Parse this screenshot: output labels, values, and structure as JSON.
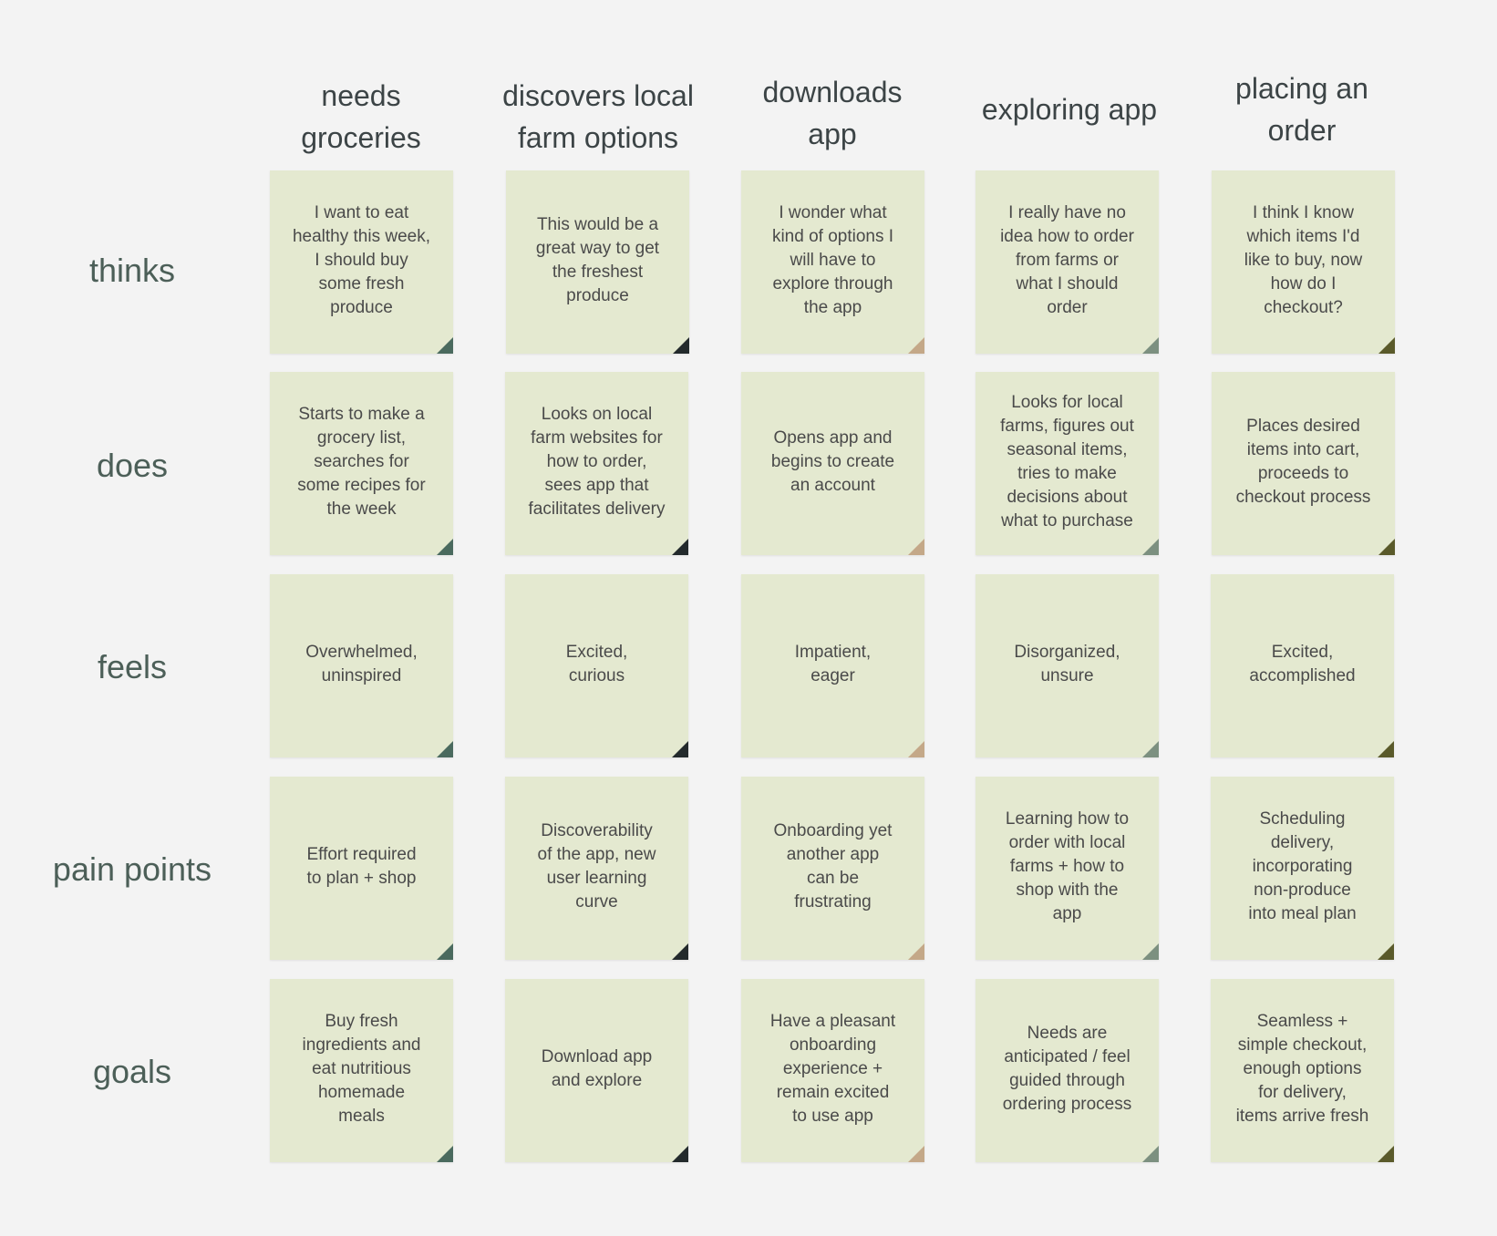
{
  "columns": [
    {
      "title": "needs\ngroceries",
      "fold_color": "#4a6a5e"
    },
    {
      "title": "discovers local\nfarm options",
      "fold_color": "#232a2c"
    },
    {
      "title": "downloads\napp",
      "fold_color": "#c4a888"
    },
    {
      "title": "exploring app",
      "fold_color": "#7c9080"
    },
    {
      "title": "placing an\norder",
      "fold_color": "#5a5a2a"
    }
  ],
  "rows": [
    {
      "label": "thinks",
      "notes": [
        "I want to eat\nhealthy this week,\nI should buy\nsome fresh\nproduce",
        "This would be a\ngreat way to get\nthe freshest\nproduce",
        "I wonder what\nkind of options I\nwill have to\nexplore through\nthe app",
        "I really have no\nidea how to order\nfrom farms or\nwhat I should\norder",
        "I think I know\nwhich items I'd\nlike to buy, now\nhow do I\ncheckout?"
      ]
    },
    {
      "label": "does",
      "notes": [
        "Starts to make a\ngrocery list,\nsearches for\nsome recipes for\nthe week",
        "Looks on local\nfarm websites for\nhow to order,\nsees app that\nfacilitates delivery",
        "Opens app and\nbegins to create\nan account",
        "Looks for local\nfarms, figures out\nseasonal items,\ntries to make\ndecisions about\nwhat to purchase",
        "Places desired\nitems into cart,\nproceeds to\ncheckout process"
      ]
    },
    {
      "label": "feels",
      "notes": [
        "Overwhelmed,\nuninspired",
        "Excited,\ncurious",
        "Impatient,\neager",
        "Disorganized,\nunsure",
        "Excited,\naccomplished"
      ]
    },
    {
      "label": "pain points",
      "notes": [
        "Effort required\nto plan + shop",
        "Discoverability\nof the app, new\nuser learning\ncurve",
        "Onboarding yet\nanother app\ncan be\nfrustrating",
        "Learning how to\norder with local\nfarms + how to\nshop with the\napp",
        "Scheduling\ndelivery,\nincorporating\nnon-produce\ninto meal plan"
      ]
    },
    {
      "label": "goals",
      "notes": [
        "Buy fresh\ningredients and\neat nutritious\nhomemade\nmeals",
        "Download app\nand explore",
        "Have a pleasant\nonboarding\nexperience +\nremain excited\nto use app",
        "Needs are\nanticipated / feel\nguided through\nordering process",
        "Seamless +\nsimple checkout,\nenough options\nfor delivery,\nitems arrive fresh"
      ]
    }
  ],
  "colors": {
    "background": "#f3f3f3",
    "note": "#e4e9d0",
    "header_text": "#3c4446",
    "row_label_text": "#4c5f58",
    "note_text": "#4a4a4a"
  }
}
